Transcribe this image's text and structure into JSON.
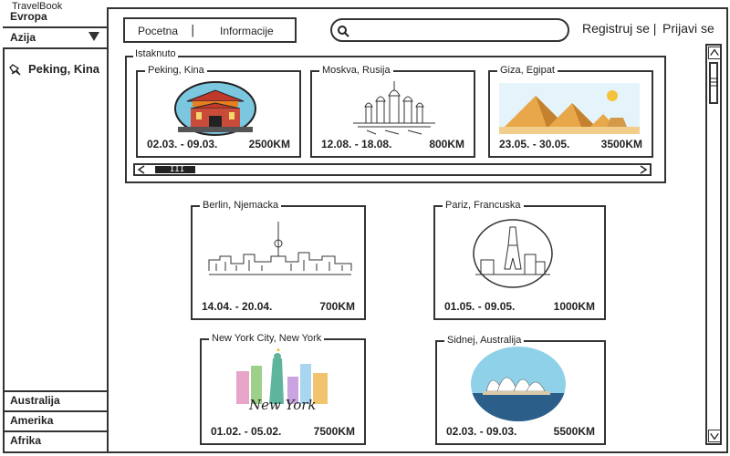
{
  "app": {
    "title": "TravelBook"
  },
  "sidebar": {
    "items": [
      {
        "label": "Evropa"
      },
      {
        "label": "Azija"
      }
    ],
    "active_sub": "Peking, Kina",
    "bottom_items": [
      {
        "label": "Australija"
      },
      {
        "label": "Amerika"
      },
      {
        "label": "Afrika"
      }
    ]
  },
  "nav": {
    "home": "Pocetna",
    "separator": "|",
    "info": "Informacije"
  },
  "search": {
    "placeholder": ""
  },
  "auth": {
    "register": "Registruj se |",
    "login": "Prijavi se"
  },
  "featured": {
    "label": "Istaknuto",
    "cards": [
      {
        "title": "Peking, Kina",
        "dates": "02.03. - 09.03.",
        "distance": "2500KM",
        "icon": "temple-illustration"
      },
      {
        "title": "Moskva, Rusija",
        "dates": "12.08. - 18.08.",
        "distance": "800KM",
        "icon": "kremlin-illustration"
      },
      {
        "title": "Giza, Egipat",
        "dates": "23.05. - 30.05.",
        "distance": "3500KM",
        "icon": "pyramids-illustration"
      }
    ],
    "scroll_thumb": "III"
  },
  "trips": [
    {
      "title": "Berlin, Njemacka",
      "dates": "14.04. - 20.04.",
      "distance": "700KM",
      "icon": "berlin-skyline-illustration"
    },
    {
      "title": "Pariz, Francuska",
      "dates": "01.05. - 09.05.",
      "distance": "1000KM",
      "icon": "paris-skyline-illustration"
    },
    {
      "title": "New York City, New York",
      "dates": "01.02. - 05.02.",
      "distance": "7500KM",
      "icon": "new-york-illustration",
      "image_text": "New York"
    },
    {
      "title": "Sidnej, Australija",
      "dates": "02.03. - 09.03.",
      "distance": "5500KM",
      "icon": "sydney-opera-illustration"
    }
  ],
  "colors": {
    "border": "#333333",
    "sea": "#2b5f8a",
    "sand": "#e8a84a",
    "sky": "#8fd1e8"
  }
}
